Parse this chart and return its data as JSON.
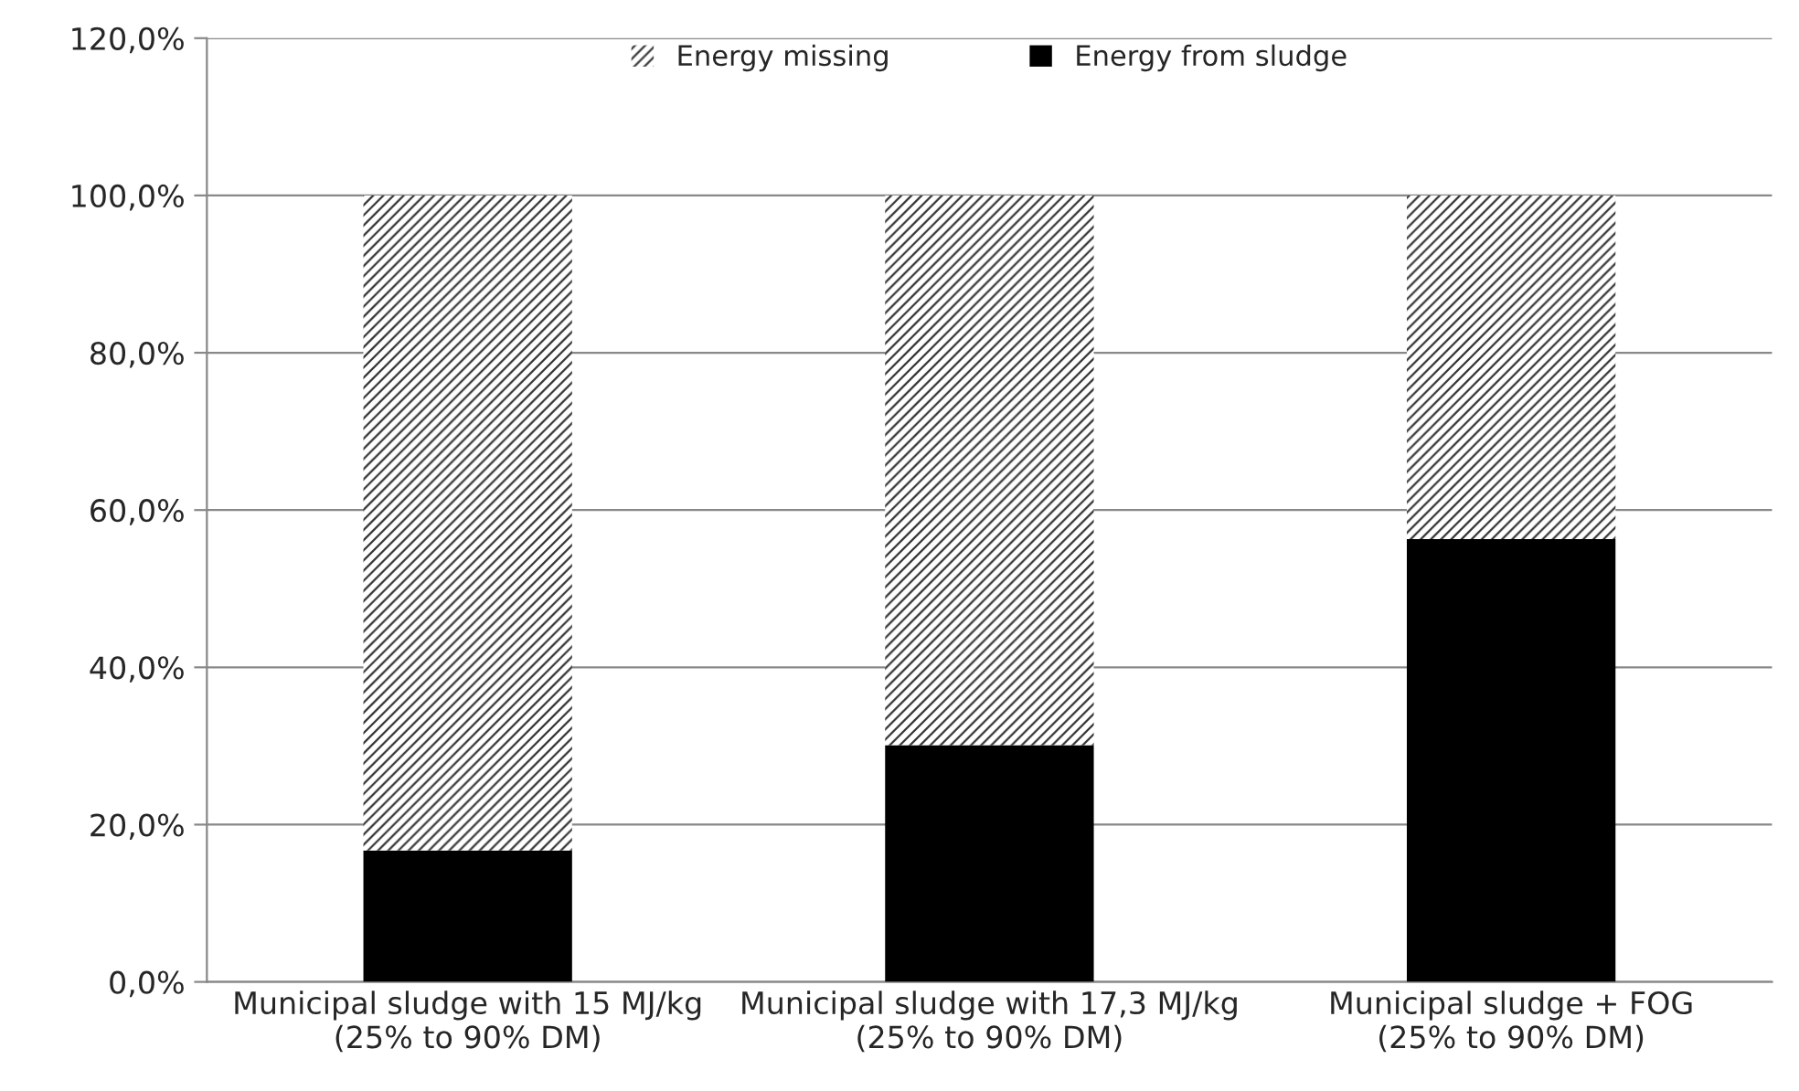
{
  "chart_data": {
    "type": "bar",
    "stacked": true,
    "categories": [
      "Municipal sludge with 15 MJ/kg\n(25% to 90% DM)",
      "Municipal sludge with 17,3 MJ/kg\n(25% to 90% DM)",
      "Municipal sludge + FOG\n(25% to 90% DM)"
    ],
    "series": [
      {
        "name": "Energy from sludge",
        "color": "#000000",
        "values": [
          16.7,
          30.1,
          56.3
        ]
      },
      {
        "name": "Energy missing",
        "color": "#8c8c8c",
        "values": [
          83.3,
          69.9,
          43.7
        ]
      }
    ],
    "ylim": [
      0,
      120
    ],
    "yticks": [
      {
        "value": 0,
        "label": "0,0%"
      },
      {
        "value": 20,
        "label": "20,0%"
      },
      {
        "value": 40,
        "label": "40,0%"
      },
      {
        "value": 60,
        "label": "60,0%"
      },
      {
        "value": 80,
        "label": "80,0%"
      },
      {
        "value": 100,
        "label": "100,0%"
      },
      {
        "value": 120,
        "label": "120,0%"
      }
    ],
    "grid": "y",
    "legend": "top"
  }
}
